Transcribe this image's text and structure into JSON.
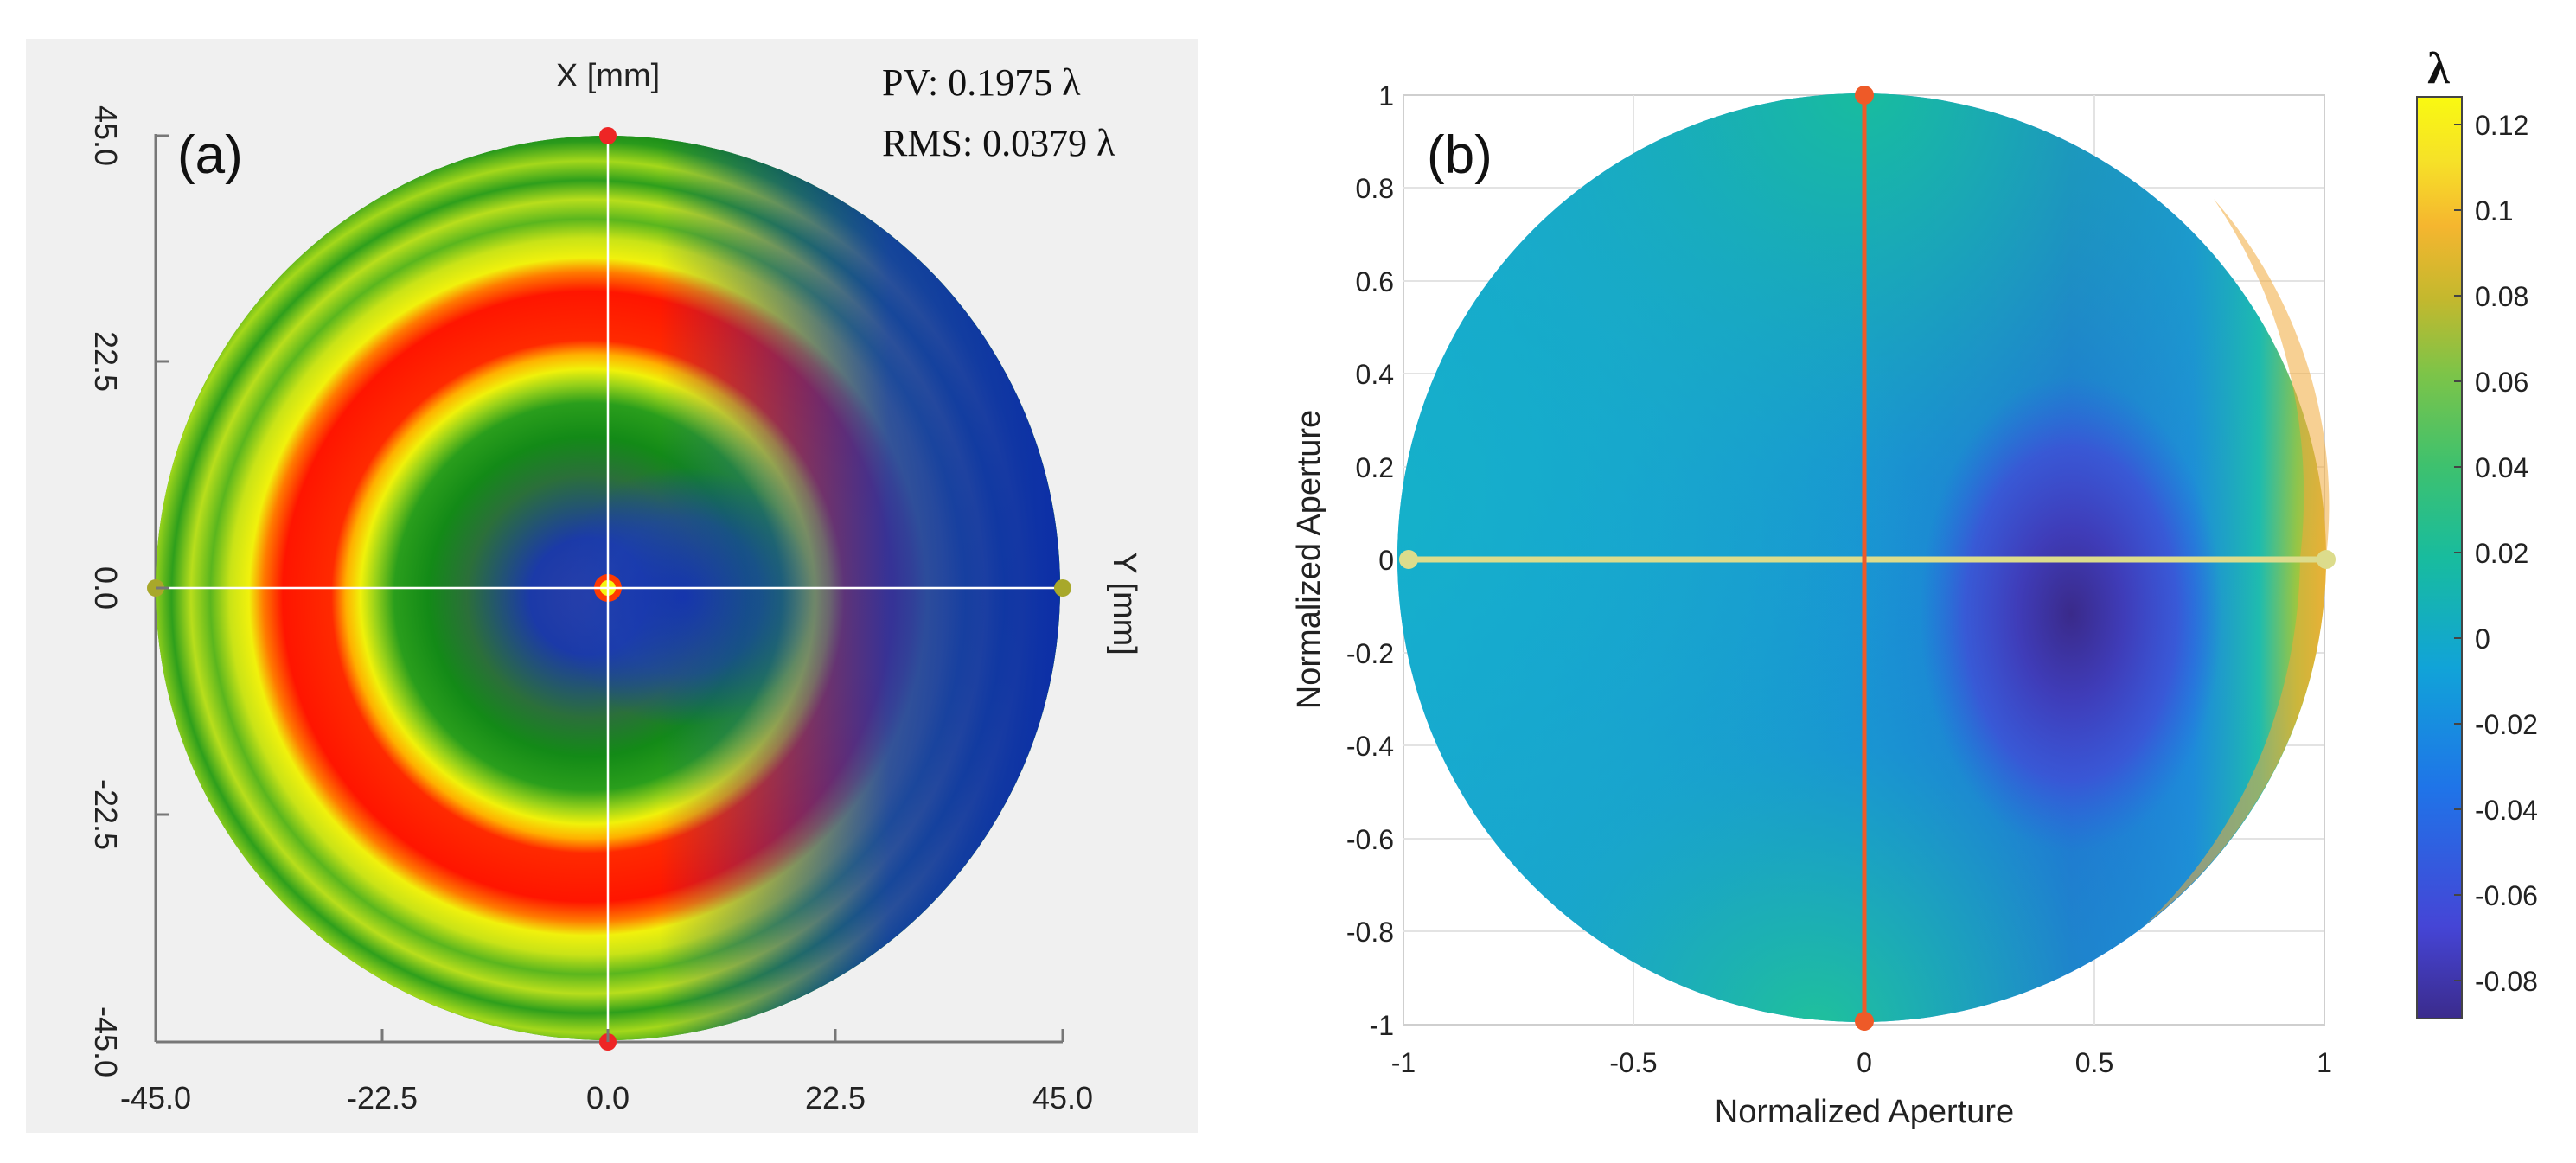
{
  "chart_data": [
    {
      "type": "heatmap",
      "panel_label": "(a)",
      "xlabel": "X [mm]",
      "ylabel": "Y [mm]",
      "x_ticks": [
        "45.0",
        "22.5",
        "0.0",
        "-22.5",
        "-45.0"
      ],
      "y_ticks": [
        "-45.0",
        "-22.5",
        "0.0",
        "22.5",
        "45.0"
      ],
      "xlim": [
        -45,
        45
      ],
      "ylim": [
        -45,
        45
      ],
      "stats": {
        "pv": "PV: 0.1975 λ",
        "rms": "RMS: 0.0379 λ"
      },
      "colormap": [
        "#1c33a8",
        "#128a14",
        "#2aa51c",
        "#f2f205",
        "#ff1a00"
      ],
      "features": [
        {
          "name": "central high spot",
          "r": 0.0
        },
        {
          "name": "inner low region (blue)",
          "r": 0.15
        },
        {
          "name": "green ring",
          "r": 0.38
        },
        {
          "name": "red ring (off-centre)",
          "r": 0.58
        },
        {
          "name": "outer green/yellow zone",
          "r": 0.85
        }
      ]
    },
    {
      "type": "heatmap",
      "panel_label": "(b)",
      "xlabel": "Normalized Aperture",
      "ylabel": "Normalized Aperture",
      "xlim": [
        -1,
        1
      ],
      "ylim": [
        -1,
        1
      ],
      "x_ticks": [
        "-1",
        "-0.5",
        "0",
        "0.5",
        "1"
      ],
      "y_ticks": [
        "1",
        "0.8",
        "0.6",
        "0.4",
        "0.2",
        "0",
        "-0.2",
        "-0.4",
        "-0.6",
        "-0.8",
        "-1"
      ],
      "colorbar": {
        "title": "λ",
        "range": [
          -0.088,
          0.128
        ],
        "ticks": [
          "0.12",
          "0.1",
          "0.08",
          "0.06",
          "0.04",
          "0.02",
          "0",
          "-0.02",
          "-0.04",
          "-0.06",
          "-0.08"
        ],
        "colors": [
          "#3b2b8c",
          "#4545d6",
          "#1f74e8",
          "#11a3d8",
          "#18bc9e",
          "#3ec16e",
          "#7dc448",
          "#c3b82e",
          "#f5b62f",
          "#f6e128",
          "#f9f911"
        ]
      },
      "minimum_location": [
        0.45,
        -0.15
      ]
    }
  ]
}
